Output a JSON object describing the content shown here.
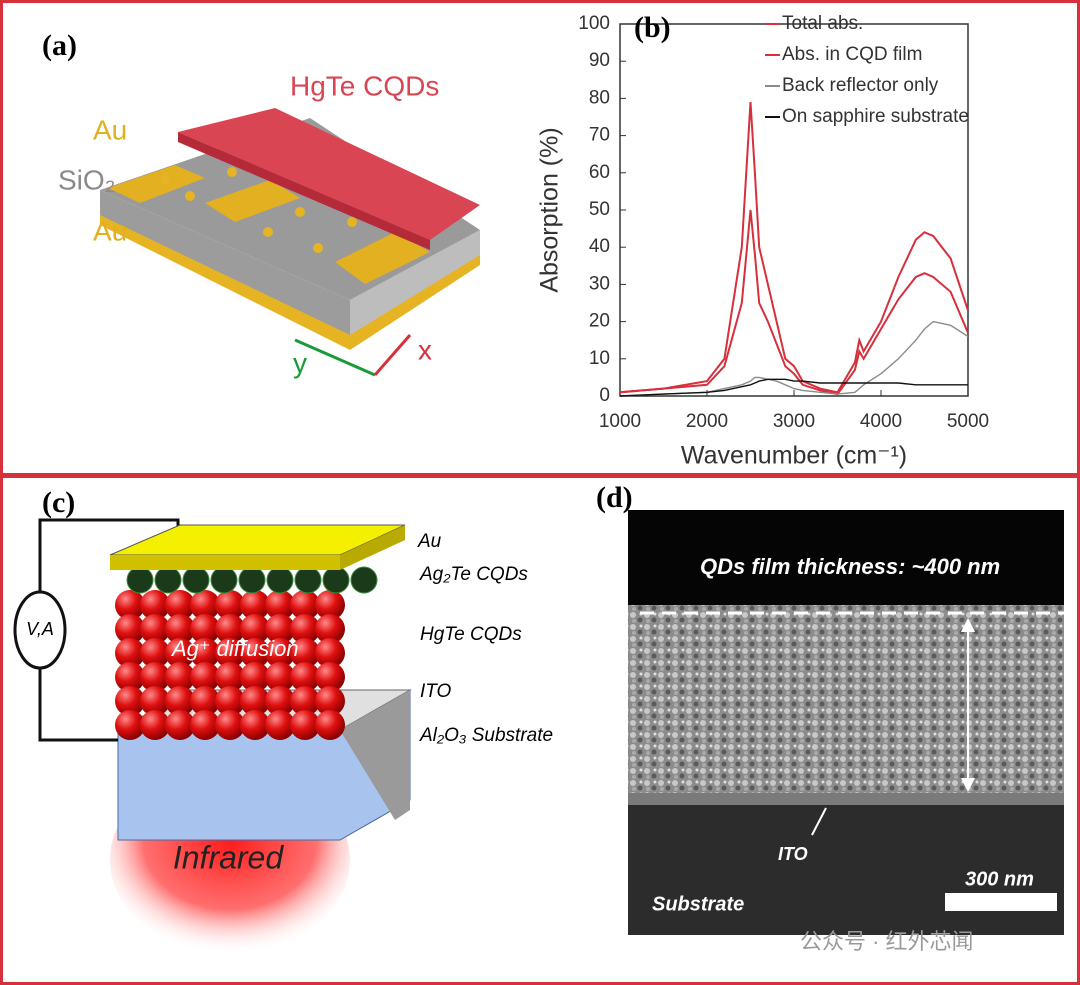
{
  "panels": {
    "a": {
      "label": "(a)",
      "hgte": "HgTe CQDs",
      "au_top": "Au",
      "sio2": "SiO₂",
      "au_bottom": "Au",
      "axis_x": "x",
      "axis_y": "y"
    },
    "c": {
      "label": "(c)",
      "au": "Au",
      "ag2te": "Ag₂Te CQDs",
      "hgte": "HgTe CQDs",
      "ito": "ITO",
      "substrate": "Al₂O₃ Substrate",
      "diffusion": "Ag⁺ diffusion",
      "meter": "V,A",
      "infrared": "Infrared"
    },
    "d": {
      "label": "(d)",
      "thickness": "QDs film thickness: ~400 nm",
      "ito": "ITO",
      "substrate": "Substrate",
      "scale": "300 nm"
    },
    "watermark": "公众号 · 红外芯闻"
  },
  "chart_data": {
    "type": "line",
    "label": "(b)",
    "ylabel": "Absorption (%)",
    "xlabel": "Wavenumber (cm⁻¹)",
    "x": [
      1000,
      1500,
      2000,
      2200,
      2400,
      2500,
      2550,
      2600,
      2700,
      2800,
      2900,
      3000,
      3100,
      3300,
      3500,
      3700,
      3750,
      3800,
      4000,
      4200,
      4400,
      4500,
      4600,
      4800,
      5000
    ],
    "xlim": [
      1000,
      5000
    ],
    "xticks": [
      1000,
      2000,
      3000,
      4000,
      5000
    ],
    "ylim": [
      0,
      100
    ],
    "yticks": [
      0,
      10,
      20,
      30,
      40,
      50,
      60,
      70,
      80,
      90,
      100
    ],
    "series": [
      {
        "name": "Total abs.",
        "color": "#d6303c",
        "values": [
          1,
          2,
          4,
          10,
          40,
          79,
          60,
          40,
          30,
          20,
          10,
          8,
          4,
          2,
          1,
          9,
          15,
          12,
          20,
          32,
          42,
          44,
          43,
          37,
          23
        ]
      },
      {
        "name": "Abs. in CQD film",
        "color": "#d6303c",
        "values": [
          1,
          2,
          3,
          8,
          25,
          50,
          38,
          25,
          20,
          14,
          8,
          6,
          3,
          1.5,
          0.5,
          7,
          12,
          10,
          18,
          26,
          32,
          33,
          32,
          28,
          17
        ]
      },
      {
        "name": "Back reflector only",
        "color": "#8a8a8a",
        "values": [
          0,
          0.5,
          1,
          2,
          3,
          4,
          5,
          5,
          4.5,
          4,
          3,
          2,
          1.5,
          1,
          0.5,
          1,
          2,
          3,
          6,
          10,
          15,
          18,
          20,
          19,
          16
        ]
      },
      {
        "name": "On sapphire substrate",
        "color": "#111111",
        "values": [
          0,
          0.5,
          1,
          1.5,
          2.5,
          3,
          3.5,
          4,
          4.5,
          4.5,
          4.5,
          4,
          4,
          3.5,
          3.5,
          3.5,
          3.5,
          3.5,
          3.5,
          3.5,
          3,
          3,
          3,
          3,
          3
        ]
      }
    ]
  }
}
